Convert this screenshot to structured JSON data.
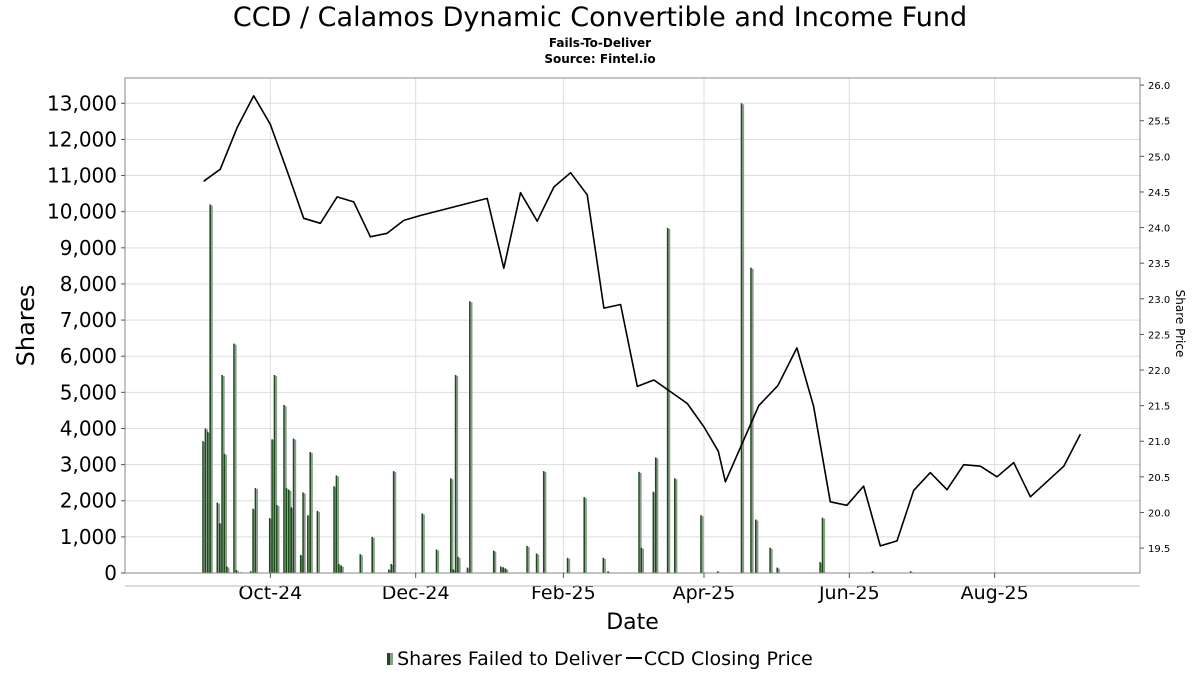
{
  "header": {
    "title": "CCD / Calamos Dynamic Convertible and Income Fund",
    "subtitle": "Fails-To-Deliver",
    "source": "Source: Fintel.io"
  },
  "legend": {
    "bars_label": "Shares Failed to Deliver",
    "line_label": "CCD Closing Price"
  },
  "chart_data": {
    "type": "bar+line",
    "xlabel": "Date",
    "ylabel_left": "Shares",
    "ylabel_right": "Share Price",
    "x_tick_labels": [
      {
        "label": "Oct-24",
        "date": "2024-10-01"
      },
      {
        "label": "Dec-24",
        "date": "2024-12-01"
      },
      {
        "label": "Feb-25",
        "date": "2025-02-01"
      },
      {
        "label": "Apr-25",
        "date": "2025-04-01"
      },
      {
        "label": "Jun-25",
        "date": "2025-06-01"
      },
      {
        "label": "Aug-25",
        "date": "2025-08-01"
      }
    ],
    "xlim": [
      "2024-08-01",
      "2025-10-01"
    ],
    "ylim_left": [
      0,
      13700
    ],
    "ylim_right": [
      19.15,
      26.1
    ],
    "left_ticks": [
      0,
      1000,
      2000,
      3000,
      4000,
      5000,
      6000,
      7000,
      8000,
      9000,
      10000,
      11000,
      12000,
      13000
    ],
    "right_ticks": [
      19.5,
      20.0,
      20.5,
      21.0,
      21.5,
      22.0,
      22.5,
      23.0,
      23.5,
      24.0,
      24.5,
      25.0,
      25.5,
      26.0
    ],
    "grid": true,
    "legend_position": "bottom",
    "colors": {
      "bar_dark": "#1a4d1a",
      "bar_light": "#8c9a8c",
      "line": "#000000",
      "grid": "#dddddd"
    },
    "series": [
      {
        "name": "Shares Failed to Deliver",
        "type": "bar",
        "points": [
          {
            "date": "2024-09-03",
            "value": 3650
          },
          {
            "date": "2024-09-04",
            "value": 4000
          },
          {
            "date": "2024-09-05",
            "value": 3900
          },
          {
            "date": "2024-09-06",
            "value": 10200
          },
          {
            "date": "2024-09-09",
            "value": 1950
          },
          {
            "date": "2024-09-10",
            "value": 1380
          },
          {
            "date": "2024-09-11",
            "value": 5480
          },
          {
            "date": "2024-09-12",
            "value": 3300
          },
          {
            "date": "2024-09-13",
            "value": 180
          },
          {
            "date": "2024-09-16",
            "value": 6350
          },
          {
            "date": "2024-09-17",
            "value": 80
          },
          {
            "date": "2024-09-19",
            "value": 20
          },
          {
            "date": "2024-09-23",
            "value": 50
          },
          {
            "date": "2024-09-24",
            "value": 1780
          },
          {
            "date": "2024-09-25",
            "value": 2350
          },
          {
            "date": "2024-10-01",
            "value": 1520
          },
          {
            "date": "2024-10-02",
            "value": 3700
          },
          {
            "date": "2024-10-03",
            "value": 5480
          },
          {
            "date": "2024-10-04",
            "value": 1880
          },
          {
            "date": "2024-10-07",
            "value": 4650
          },
          {
            "date": "2024-10-08",
            "value": 2350
          },
          {
            "date": "2024-10-09",
            "value": 2300
          },
          {
            "date": "2024-10-10",
            "value": 1820
          },
          {
            "date": "2024-10-11",
            "value": 3720
          },
          {
            "date": "2024-10-14",
            "value": 500
          },
          {
            "date": "2024-10-15",
            "value": 2230
          },
          {
            "date": "2024-10-17",
            "value": 1600
          },
          {
            "date": "2024-10-18",
            "value": 3350
          },
          {
            "date": "2024-10-21",
            "value": 1720
          },
          {
            "date": "2024-10-28",
            "value": 2400
          },
          {
            "date": "2024-10-29",
            "value": 2700
          },
          {
            "date": "2024-10-30",
            "value": 250
          },
          {
            "date": "2024-10-31",
            "value": 200
          },
          {
            "date": "2024-11-08",
            "value": 520
          },
          {
            "date": "2024-11-13",
            "value": 1000
          },
          {
            "date": "2024-11-20",
            "value": 100
          },
          {
            "date": "2024-11-21",
            "value": 250
          },
          {
            "date": "2024-11-22",
            "value": 2820
          },
          {
            "date": "2024-12-04",
            "value": 1650
          },
          {
            "date": "2024-12-10",
            "value": 650
          },
          {
            "date": "2024-12-16",
            "value": 2620
          },
          {
            "date": "2024-12-17",
            "value": 100
          },
          {
            "date": "2024-12-18",
            "value": 5480
          },
          {
            "date": "2024-12-19",
            "value": 450
          },
          {
            "date": "2024-12-23",
            "value": 150
          },
          {
            "date": "2024-12-24",
            "value": 7520
          },
          {
            "date": "2025-01-03",
            "value": 620
          },
          {
            "date": "2025-01-06",
            "value": 180
          },
          {
            "date": "2025-01-07",
            "value": 160
          },
          {
            "date": "2025-01-08",
            "value": 120
          },
          {
            "date": "2025-01-17",
            "value": 750
          },
          {
            "date": "2025-01-21",
            "value": 540
          },
          {
            "date": "2025-01-24",
            "value": 2820
          },
          {
            "date": "2025-02-03",
            "value": 420
          },
          {
            "date": "2025-02-10",
            "value": 2100
          },
          {
            "date": "2025-02-18",
            "value": 420
          },
          {
            "date": "2025-02-20",
            "value": 50
          },
          {
            "date": "2025-03-05",
            "value": 2800
          },
          {
            "date": "2025-03-06",
            "value": 700
          },
          {
            "date": "2025-03-11",
            "value": 2250
          },
          {
            "date": "2025-03-12",
            "value": 3200
          },
          {
            "date": "2025-03-17",
            "value": 9550
          },
          {
            "date": "2025-03-20",
            "value": 2620
          },
          {
            "date": "2025-03-31",
            "value": 1600
          },
          {
            "date": "2025-04-07",
            "value": 50
          },
          {
            "date": "2025-04-17",
            "value": 13000
          },
          {
            "date": "2025-04-21",
            "value": 8450
          },
          {
            "date": "2025-04-23",
            "value": 1480
          },
          {
            "date": "2025-04-29",
            "value": 700
          },
          {
            "date": "2025-05-02",
            "value": 150
          },
          {
            "date": "2025-05-20",
            "value": 300
          },
          {
            "date": "2025-05-21",
            "value": 1530
          },
          {
            "date": "2025-06-11",
            "value": 50
          },
          {
            "date": "2025-06-27",
            "value": 50
          }
        ]
      },
      {
        "name": "CCD Closing Price",
        "type": "line",
        "points": [
          {
            "date": "2024-09-03",
            "value": 24.65
          },
          {
            "date": "2024-09-10",
            "value": 24.82
          },
          {
            "date": "2024-09-17",
            "value": 25.4
          },
          {
            "date": "2024-09-24",
            "value": 25.85
          },
          {
            "date": "2024-10-01",
            "value": 25.45
          },
          {
            "date": "2024-10-08",
            "value": 24.8
          },
          {
            "date": "2024-10-15",
            "value": 24.13
          },
          {
            "date": "2024-10-22",
            "value": 24.06
          },
          {
            "date": "2024-10-29",
            "value": 24.43
          },
          {
            "date": "2024-11-05",
            "value": 24.36
          },
          {
            "date": "2024-11-12",
            "value": 23.87
          },
          {
            "date": "2024-11-19",
            "value": 23.92
          },
          {
            "date": "2024-11-26",
            "value": 24.1
          },
          {
            "date": "2024-12-03",
            "value": 24.17
          },
          {
            "date": "2024-12-31",
            "value": 24.41
          },
          {
            "date": "2025-01-07",
            "value": 23.43
          },
          {
            "date": "2025-01-14",
            "value": 24.49
          },
          {
            "date": "2025-01-21",
            "value": 24.09
          },
          {
            "date": "2025-01-28",
            "value": 24.57
          },
          {
            "date": "2025-02-04",
            "value": 24.77
          },
          {
            "date": "2025-02-11",
            "value": 24.46
          },
          {
            "date": "2025-02-18",
            "value": 22.87
          },
          {
            "date": "2025-02-25",
            "value": 22.92
          },
          {
            "date": "2025-03-04",
            "value": 21.77
          },
          {
            "date": "2025-03-11",
            "value": 21.86
          },
          {
            "date": "2025-03-25",
            "value": 21.53
          },
          {
            "date": "2025-04-01",
            "value": 21.2
          },
          {
            "date": "2025-04-07",
            "value": 20.86
          },
          {
            "date": "2025-04-10",
            "value": 20.43
          },
          {
            "date": "2025-04-24",
            "value": 21.5
          },
          {
            "date": "2025-05-02",
            "value": 21.78
          },
          {
            "date": "2025-05-10",
            "value": 22.31
          },
          {
            "date": "2025-05-17",
            "value": 21.49
          },
          {
            "date": "2025-05-24",
            "value": 20.15
          },
          {
            "date": "2025-05-31",
            "value": 20.1
          },
          {
            "date": "2025-06-07",
            "value": 20.37
          },
          {
            "date": "2025-06-14",
            "value": 19.53
          },
          {
            "date": "2025-06-21",
            "value": 19.6
          },
          {
            "date": "2025-06-28",
            "value": 20.31
          },
          {
            "date": "2025-07-05",
            "value": 20.56
          },
          {
            "date": "2025-07-12",
            "value": 20.32
          },
          {
            "date": "2025-07-19",
            "value": 20.67
          },
          {
            "date": "2025-07-26",
            "value": 20.65
          },
          {
            "date": "2025-08-02",
            "value": 20.5
          },
          {
            "date": "2025-08-09",
            "value": 20.7
          },
          {
            "date": "2025-08-16",
            "value": 20.22
          },
          {
            "date": "2025-08-30",
            "value": 20.65
          },
          {
            "date": "2025-09-06",
            "value": 21.1
          }
        ]
      }
    ]
  }
}
